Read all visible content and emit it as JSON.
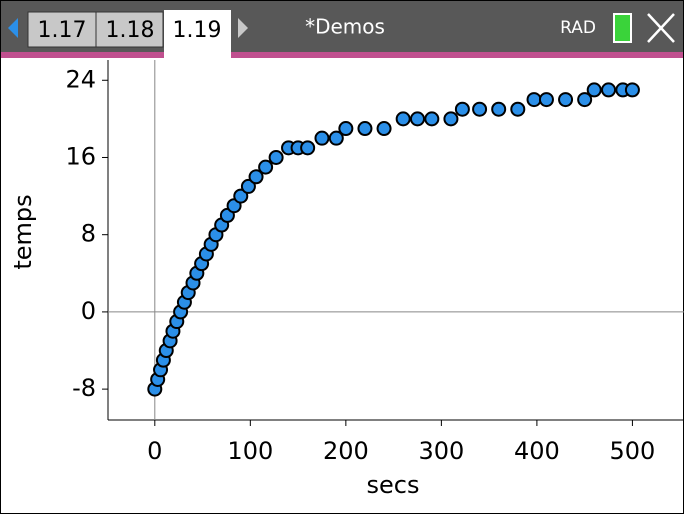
{
  "ui": {
    "tabs": [
      "1.17",
      "1.18",
      "1.19"
    ],
    "document_title": "*Demos",
    "angle_mode": "RAD"
  },
  "chart_data": {
    "type": "scatter",
    "x_label": "secs",
    "y_label": "temps",
    "x": [
      0,
      3,
      6,
      9,
      12,
      16,
      19,
      23,
      27,
      31,
      35,
      40,
      44,
      49,
      54,
      59,
      64,
      70,
      76,
      83,
      90,
      98,
      106,
      116,
      127,
      140,
      150,
      160,
      175,
      190,
      200,
      220,
      240,
      260,
      275,
      290,
      310,
      322,
      340,
      360,
      380,
      397,
      410,
      430,
      450,
      460,
      475,
      490,
      500
    ],
    "values": [
      -8,
      -7,
      -6,
      -5,
      -4,
      -3,
      -2,
      -1,
      0,
      1,
      2,
      3,
      4,
      5,
      6,
      7,
      8,
      9,
      10,
      11,
      12,
      13,
      14,
      15,
      16,
      17,
      17,
      17,
      18,
      18,
      19,
      19,
      19,
      20,
      20,
      20,
      20,
      21,
      21,
      21,
      21,
      22,
      22,
      22,
      22,
      23,
      23,
      23,
      23
    ],
    "color": "#2b8fe8",
    "xlim": [
      -49,
      554
    ],
    "ylim": [
      -11.2,
      26.1
    ],
    "xticks": [
      0,
      100,
      200,
      300,
      400,
      500
    ],
    "yticks": [
      -8,
      0,
      8,
      16,
      24
    ]
  }
}
